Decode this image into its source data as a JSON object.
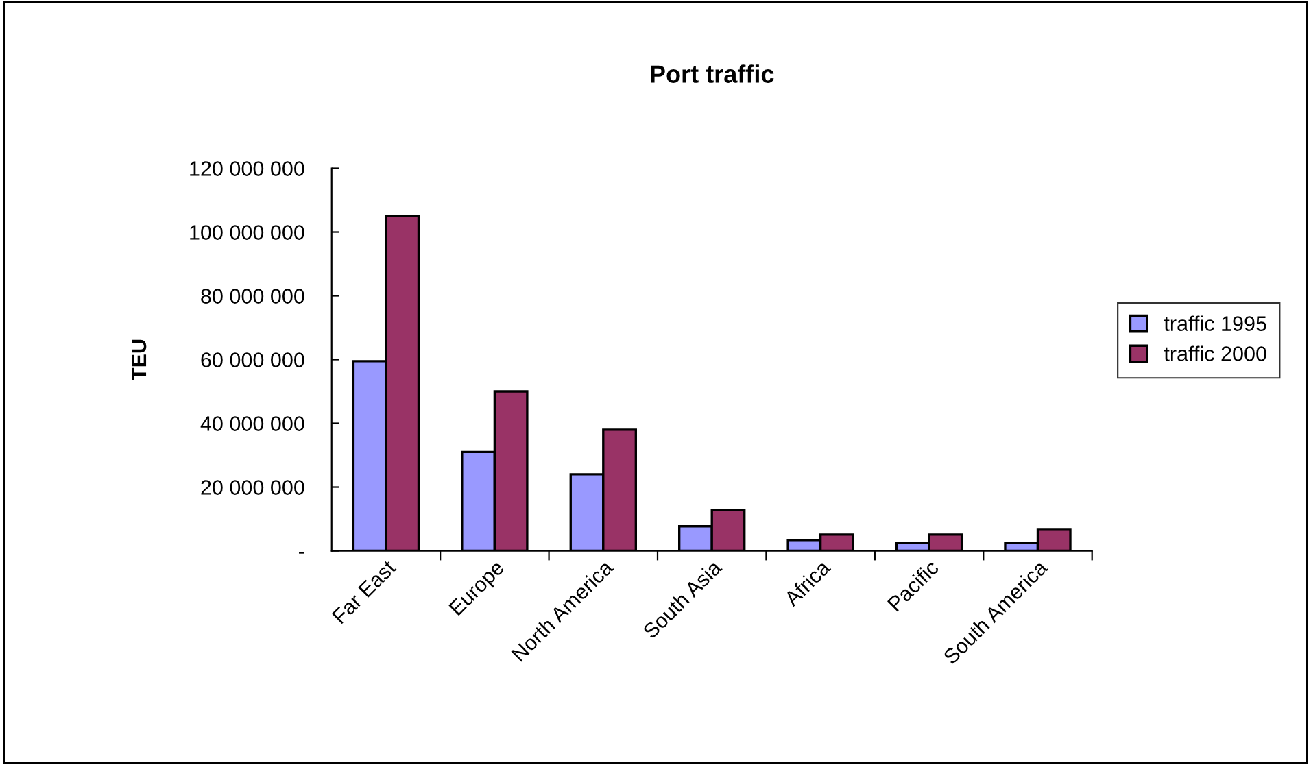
{
  "chart_data": {
    "type": "bar",
    "title": "Port traffic",
    "ylabel": "TEU",
    "categories": [
      "Far East",
      "Europe",
      "North America",
      "South Asia",
      "Africa",
      "Pacific",
      "South America"
    ],
    "series": [
      {
        "name": "traffic 1995",
        "color": "#9999ff",
        "values": [
          59500000,
          31000000,
          24000000,
          7700000,
          3400000,
          2500000,
          2500000
        ]
      },
      {
        "name": "traffic 2000",
        "color": "#993366",
        "values": [
          105000000,
          50000000,
          38000000,
          12800000,
          5100000,
          5100000,
          6800000
        ]
      }
    ],
    "ylim": [
      0,
      120000000
    ],
    "yticks": [
      {
        "value": 0,
        "label": "-"
      },
      {
        "value": 20000000,
        "label": "20 000 000"
      },
      {
        "value": 40000000,
        "label": "40 000 000"
      },
      {
        "value": 60000000,
        "label": "60 000 000"
      },
      {
        "value": 80000000,
        "label": "80 000 000"
      },
      {
        "value": 100000000,
        "label": "100 000 000"
      },
      {
        "value": 120000000,
        "label": "120 000 000"
      }
    ],
    "grid": false,
    "legend": "right"
  }
}
